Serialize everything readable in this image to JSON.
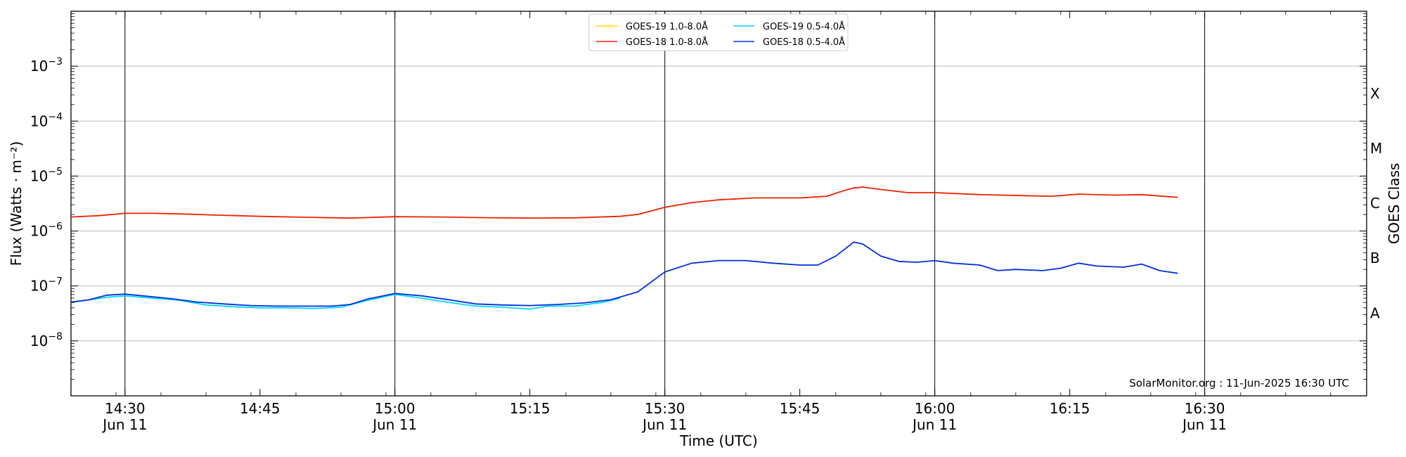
{
  "chart_data": {
    "type": "line",
    "title": "",
    "xlabel": "Time (UTC)",
    "ylabel": "Flux (Watts · m⁻²)",
    "right_label": "GOES Class",
    "y_scale": "log",
    "ylim": [
      1e-09,
      0.01
    ],
    "xlim": [
      "14:24",
      "16:48"
    ],
    "y_ticks": [
      {
        "value": 1e-08,
        "base": "10",
        "exp": "−8"
      },
      {
        "value": 1e-07,
        "base": "10",
        "exp": "−7"
      },
      {
        "value": 1e-06,
        "base": "10",
        "exp": "−6"
      },
      {
        "value": 1e-05,
        "base": "10",
        "exp": "−5"
      },
      {
        "value": 0.0001,
        "base": "10",
        "exp": "−4"
      },
      {
        "value": 0.001,
        "base": "10",
        "exp": "−3"
      }
    ],
    "x_ticks": [
      {
        "time": "14:30",
        "label": "14:30",
        "sublabel": "Jun 11",
        "vline": true
      },
      {
        "time": "14:45",
        "label": "14:45",
        "sublabel": "",
        "vline": false
      },
      {
        "time": "15:00",
        "label": "15:00",
        "sublabel": "Jun 11",
        "vline": true
      },
      {
        "time": "15:15",
        "label": "15:15",
        "sublabel": "",
        "vline": false
      },
      {
        "time": "15:30",
        "label": "15:30",
        "sublabel": "Jun 11",
        "vline": true
      },
      {
        "time": "15:45",
        "label": "15:45",
        "sublabel": "",
        "vline": false
      },
      {
        "time": "16:00",
        "label": "16:00",
        "sublabel": "Jun 11",
        "vline": true
      },
      {
        "time": "16:15",
        "label": "16:15",
        "sublabel": "",
        "vline": false
      },
      {
        "time": "16:30",
        "label": "16:30",
        "sublabel": "Jun 11",
        "vline": true
      }
    ],
    "goes_classes": [
      {
        "label": "A",
        "value": 3.2e-08
      },
      {
        "label": "B",
        "value": 3.2e-07
      },
      {
        "label": "C",
        "value": 3.2e-06
      },
      {
        "label": "M",
        "value": 3.2e-05
      },
      {
        "label": "X",
        "value": 0.00032
      }
    ],
    "grid": "horizontal at decades",
    "legend_position": "top-center",
    "credit": "SolarMonitor.org : 11-Jun-2025 16:30 UTC",
    "series": [
      {
        "name": "GOES-19 1.0-8.0Å",
        "color": "#ffd700",
        "points": []
      },
      {
        "name": "GOES-18 1.0-8.0Å",
        "color": "#ee2200",
        "points": [
          [
            "14:24",
            1.8e-06
          ],
          [
            "14:27",
            1.9e-06
          ],
          [
            "14:30",
            2.1e-06
          ],
          [
            "14:33",
            2.1e-06
          ],
          [
            "14:36",
            2.05e-06
          ],
          [
            "14:40",
            1.95e-06
          ],
          [
            "14:45",
            1.85e-06
          ],
          [
            "14:50",
            1.78e-06
          ],
          [
            "14:55",
            1.72e-06
          ],
          [
            "15:00",
            1.82e-06
          ],
          [
            "15:05",
            1.8e-06
          ],
          [
            "15:10",
            1.75e-06
          ],
          [
            "15:15",
            1.72e-06
          ],
          [
            "15:20",
            1.74e-06
          ],
          [
            "15:25",
            1.85e-06
          ],
          [
            "15:27",
            2e-06
          ],
          [
            "15:30",
            2.7e-06
          ],
          [
            "15:33",
            3.3e-06
          ],
          [
            "15:36",
            3.7e-06
          ],
          [
            "15:40",
            4e-06
          ],
          [
            "15:45",
            4e-06
          ],
          [
            "15:48",
            4.3e-06
          ],
          [
            "15:50",
            5.5e-06
          ],
          [
            "15:51",
            6.1e-06
          ],
          [
            "15:52",
            6.3e-06
          ],
          [
            "15:54",
            5.7e-06
          ],
          [
            "15:57",
            5e-06
          ],
          [
            "16:00",
            5e-06
          ],
          [
            "16:05",
            4.6e-06
          ],
          [
            "16:10",
            4.4e-06
          ],
          [
            "16:13",
            4.3e-06
          ],
          [
            "16:16",
            4.7e-06
          ],
          [
            "16:20",
            4.5e-06
          ],
          [
            "16:23",
            4.6e-06
          ],
          [
            "16:27",
            4.1e-06
          ]
        ]
      },
      {
        "name": "GOES-19 0.5-4.0Å",
        "color": "#00d8ff",
        "points": [
          [
            "14:24",
            5e-08
          ],
          [
            "14:28",
            6.2e-08
          ],
          [
            "14:30",
            6.6e-08
          ],
          [
            "14:33",
            6e-08
          ],
          [
            "14:36",
            5.5e-08
          ],
          [
            "14:39",
            4.5e-08
          ],
          [
            "14:42",
            4.2e-08
          ],
          [
            "14:45",
            4e-08
          ],
          [
            "14:48",
            4e-08
          ],
          [
            "14:51",
            3.9e-08
          ],
          [
            "14:54",
            4.1e-08
          ],
          [
            "14:57",
            5.5e-08
          ],
          [
            "15:00",
            7e-08
          ],
          [
            "15:03",
            6e-08
          ],
          [
            "15:06",
            5e-08
          ],
          [
            "15:09",
            4.3e-08
          ],
          [
            "15:12",
            4.1e-08
          ],
          [
            "15:15",
            3.8e-08
          ],
          [
            "15:17",
            4.3e-08
          ],
          [
            "15:20",
            4.3e-08
          ],
          [
            "15:23",
            5e-08
          ],
          [
            "15:25",
            6e-08
          ]
        ]
      },
      {
        "name": "GOES-18 0.5-4.0Å",
        "color": "#0030dd",
        "points": [
          [
            "14:24",
            5.1e-08
          ],
          [
            "14:26",
            5.6e-08
          ],
          [
            "14:28",
            6.8e-08
          ],
          [
            "14:30",
            7.1e-08
          ],
          [
            "14:32",
            6.6e-08
          ],
          [
            "14:35",
            5.9e-08
          ],
          [
            "14:38",
            5.1e-08
          ],
          [
            "14:41",
            4.7e-08
          ],
          [
            "14:44",
            4.4e-08
          ],
          [
            "14:47",
            4.3e-08
          ],
          [
            "14:50",
            4.3e-08
          ],
          [
            "14:53",
            4.3e-08
          ],
          [
            "14:55",
            4.6e-08
          ],
          [
            "14:57",
            5.8e-08
          ],
          [
            "15:00",
            7.3e-08
          ],
          [
            "15:03",
            6.6e-08
          ],
          [
            "15:06",
            5.6e-08
          ],
          [
            "15:09",
            4.7e-08
          ],
          [
            "15:12",
            4.5e-08
          ],
          [
            "15:15",
            4.4e-08
          ],
          [
            "15:18",
            4.6e-08
          ],
          [
            "15:21",
            4.9e-08
          ],
          [
            "15:24",
            5.6e-08
          ],
          [
            "15:27",
            7.8e-08
          ],
          [
            "15:30",
            1.8e-07
          ],
          [
            "15:33",
            2.6e-07
          ],
          [
            "15:36",
            2.9e-07
          ],
          [
            "15:39",
            2.9e-07
          ],
          [
            "15:42",
            2.6e-07
          ],
          [
            "15:45",
            2.4e-07
          ],
          [
            "15:47",
            2.4e-07
          ],
          [
            "15:49",
            3.5e-07
          ],
          [
            "15:51",
            6.3e-07
          ],
          [
            "15:52",
            5.8e-07
          ],
          [
            "15:54",
            3.5e-07
          ],
          [
            "15:56",
            2.8e-07
          ],
          [
            "15:58",
            2.7e-07
          ],
          [
            "16:00",
            2.9e-07
          ],
          [
            "16:02",
            2.6e-07
          ],
          [
            "16:05",
            2.4e-07
          ],
          [
            "16:07",
            1.9e-07
          ],
          [
            "16:09",
            2e-07
          ],
          [
            "16:12",
            1.9e-07
          ],
          [
            "16:14",
            2.1e-07
          ],
          [
            "16:16",
            2.6e-07
          ],
          [
            "16:18",
            2.3e-07
          ],
          [
            "16:21",
            2.2e-07
          ],
          [
            "16:23",
            2.5e-07
          ],
          [
            "16:25",
            1.9e-07
          ],
          [
            "16:27",
            1.7e-07
          ]
        ]
      }
    ]
  }
}
